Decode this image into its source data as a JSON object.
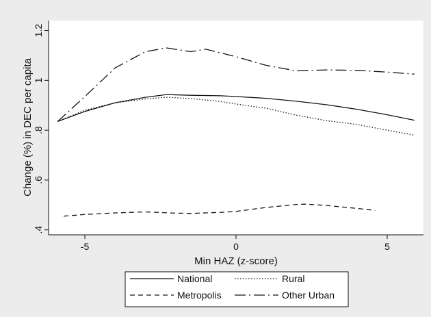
{
  "chart_data": {
    "type": "line",
    "title": "",
    "xlabel": "Min HAZ (z-score)",
    "ylabel": "Change (%) in DEC per capita",
    "xlim": [
      -6.2,
      6.2
    ],
    "ylim": [
      0.38,
      1.24
    ],
    "xticks": [
      -5,
      0,
      5
    ],
    "xtick_labels": [
      "-5",
      "0",
      "5"
    ],
    "yticks": [
      0.4,
      0.6,
      0.8,
      1.0,
      1.2
    ],
    "ytick_labels": [
      ".4",
      ".6",
      ".8",
      "1",
      "1.2"
    ],
    "grid": false,
    "legend_position": "bottom",
    "series": [
      {
        "name": "National",
        "dash": "solid",
        "x": [
          -5.9,
          -5.0,
          -4.0,
          -3.0,
          -2.3,
          -1.5,
          -0.5,
          0.0,
          1.0,
          2.0,
          3.0,
          4.0,
          5.0,
          5.9
        ],
        "y": [
          0.835,
          0.875,
          0.91,
          0.932,
          0.943,
          0.94,
          0.938,
          0.935,
          0.928,
          0.916,
          0.902,
          0.884,
          0.862,
          0.84
        ]
      },
      {
        "name": "Rural",
        "dash": "dotted",
        "x": [
          -5.9,
          -5.0,
          -4.0,
          -3.0,
          -2.3,
          -1.5,
          -0.5,
          0.0,
          1.0,
          2.0,
          3.0,
          4.0,
          5.0,
          5.9
        ],
        "y": [
          0.835,
          0.88,
          0.91,
          0.925,
          0.932,
          0.927,
          0.915,
          0.905,
          0.888,
          0.86,
          0.838,
          0.823,
          0.8,
          0.78
        ]
      },
      {
        "name": "Metropolis",
        "dash": "dashed",
        "x": [
          -5.7,
          -5.0,
          -4.0,
          -3.0,
          -2.0,
          -1.5,
          -0.5,
          0.0,
          1.0,
          2.0,
          2.3,
          3.0,
          4.0,
          4.6
        ],
        "y": [
          0.455,
          0.462,
          0.468,
          0.472,
          0.467,
          0.466,
          0.47,
          0.474,
          0.49,
          0.502,
          0.503,
          0.498,
          0.486,
          0.478
        ]
      },
      {
        "name": "Other Urban",
        "dash": "longdash-dot",
        "x": [
          -5.9,
          -5.0,
          -4.0,
          -3.0,
          -2.3,
          -1.5,
          -1.0,
          0.0,
          1.0,
          2.0,
          3.0,
          4.0,
          5.0,
          5.9
        ],
        "y": [
          0.835,
          0.935,
          1.05,
          1.115,
          1.13,
          1.115,
          1.125,
          1.095,
          1.06,
          1.038,
          1.042,
          1.04,
          1.033,
          1.025
        ]
      }
    ]
  }
}
